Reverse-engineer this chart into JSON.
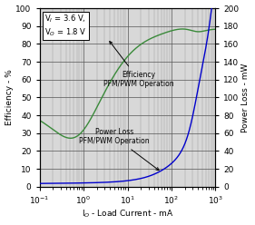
{
  "title": "",
  "xlabel": "I$_O$ - Load Current - mA",
  "ylabel_left": "Efficiency - %",
  "ylabel_right": "Power Loss - mW",
  "annotation": "V$_I$ = 3.6 V,\nV$_O$ = 1.8 V",
  "xlim": [
    0.1,
    1000
  ],
  "ylim_left": [
    0,
    100
  ],
  "ylim_right": [
    0,
    200
  ],
  "xticks": [
    0.1,
    1,
    10,
    100,
    1000
  ],
  "yticks_left": [
    0,
    10,
    20,
    30,
    40,
    50,
    60,
    70,
    80,
    90,
    100
  ],
  "yticks_right": [
    0,
    20,
    40,
    60,
    80,
    100,
    120,
    140,
    160,
    180,
    200
  ],
  "efficiency_label": "Efficiency\nPFM/PWM Operation",
  "power_label": "Power Loss\nPFM/PWM Operation",
  "efficiency_color": "#3a8a3a",
  "power_color": "#0000cc",
  "background_color": "#d8d8d8",
  "grid_color": "#555555",
  "minor_grid_color": "#999999"
}
